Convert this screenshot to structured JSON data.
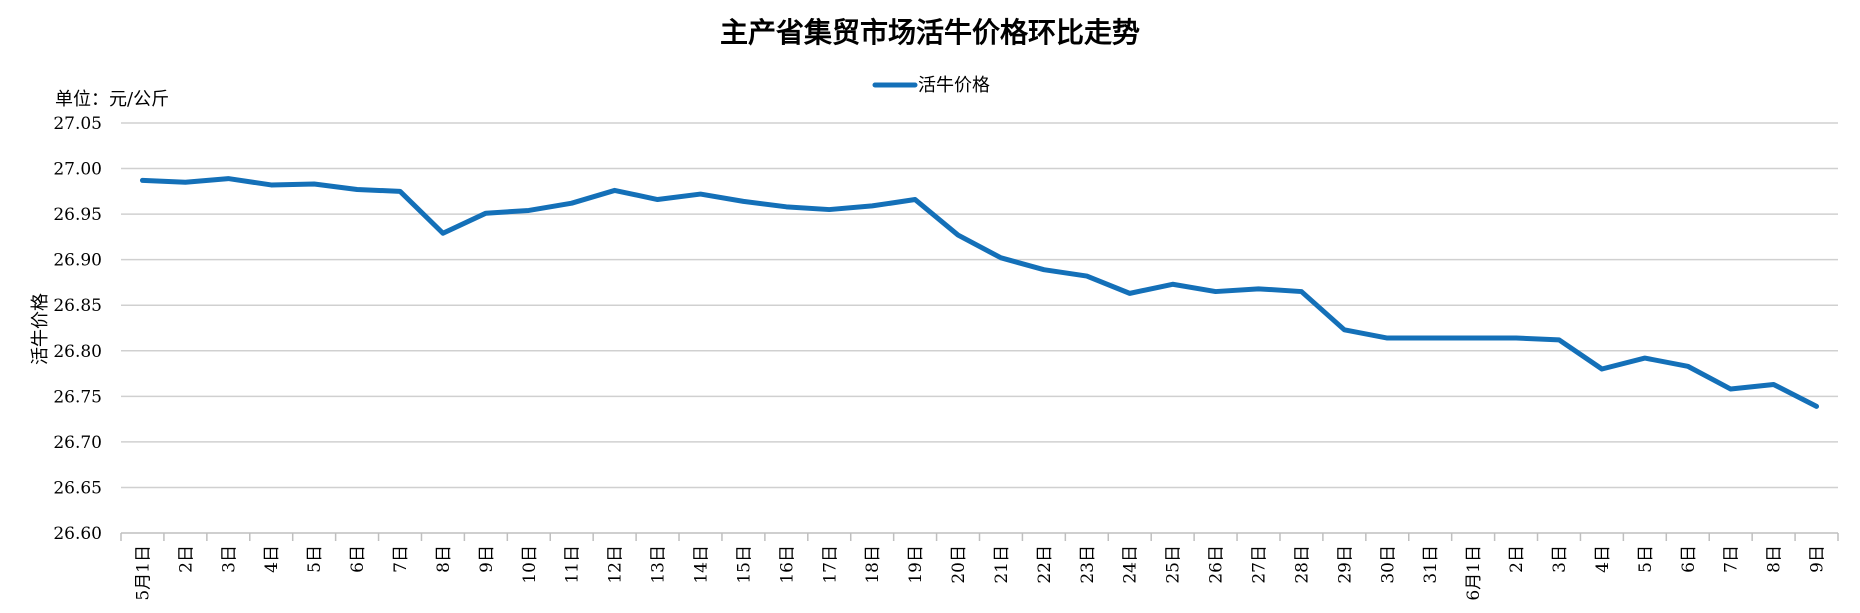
{
  "chart_data": {
    "type": "line",
    "title": "主产省集贸市场活牛价格环比走势",
    "unit_label": "单位：元/公斤",
    "ylabel": "活牛价格",
    "xlabel": "",
    "ylim": [
      26.6,
      27.05
    ],
    "y_ticks": [
      "26.60",
      "26.65",
      "26.70",
      "26.75",
      "26.80",
      "26.85",
      "26.90",
      "26.95",
      "27.00",
      "27.05"
    ],
    "grid": true,
    "legend_position": "top-center",
    "categories": [
      "5月1日",
      "2日",
      "3日",
      "4日",
      "5日",
      "6日",
      "7日",
      "8日",
      "9日",
      "10日",
      "11日",
      "12日",
      "13日",
      "14日",
      "15日",
      "16日",
      "17日",
      "18日",
      "19日",
      "20日",
      "21日",
      "22日",
      "23日",
      "24日",
      "25日",
      "26日",
      "27日",
      "28日",
      "29日",
      "30日",
      "31日",
      "6月1日",
      "2日",
      "3日",
      "4日",
      "5日",
      "6日",
      "7日",
      "8日",
      "9日"
    ],
    "series": [
      {
        "name": "活牛价格",
        "color": "#1470b8",
        "values": [
          26.987,
          26.985,
          26.989,
          26.982,
          26.983,
          26.977,
          26.975,
          26.929,
          26.951,
          26.954,
          26.962,
          26.976,
          26.966,
          26.972,
          26.964,
          26.958,
          26.955,
          26.959,
          26.966,
          26.927,
          26.902,
          26.889,
          26.882,
          26.863,
          26.873,
          26.865,
          26.868,
          26.865,
          26.823,
          26.814,
          26.814,
          26.814,
          26.814,
          26.812,
          26.78,
          26.792,
          26.783,
          26.758,
          26.763,
          26.739
        ]
      }
    ]
  }
}
